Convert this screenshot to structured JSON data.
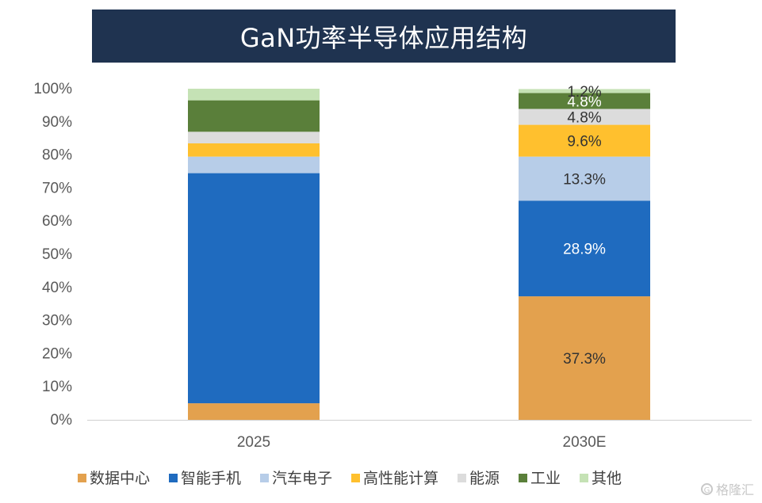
{
  "title": "GaN功率半导体应用结构",
  "watermark": "格隆汇",
  "chart_data": {
    "type": "bar",
    "stacked": true,
    "title": "GaN功率半导体应用结构",
    "categories": [
      "2025",
      "2030E"
    ],
    "ylim": [
      0,
      100
    ],
    "yticks": [
      "0%",
      "10%",
      "20%",
      "30%",
      "40%",
      "50%",
      "60%",
      "70%",
      "80%",
      "90%",
      "100%"
    ],
    "legend_position": "bottom",
    "series": [
      {
        "name": "数据中心",
        "color": "#e3a14e",
        "values": [
          5.0,
          37.3
        ],
        "labels": [
          "",
          "37.3%"
        ],
        "label_color": "#333333"
      },
      {
        "name": "智能手机",
        "color": "#1f6bbf",
        "values": [
          69.5,
          28.9
        ],
        "labels": [
          "",
          "28.9%"
        ],
        "label_color": "#ffffff"
      },
      {
        "name": "汽车电子",
        "color": "#b7cde8",
        "values": [
          5.0,
          13.3
        ],
        "labels": [
          "",
          "13.3%"
        ],
        "label_color": "#333333"
      },
      {
        "name": "高性能计算",
        "color": "#ffc02e",
        "values": [
          4.0,
          9.6
        ],
        "labels": [
          "",
          "9.6%"
        ],
        "label_color": "#333333"
      },
      {
        "name": "能源",
        "color": "#dcdcdc",
        "values": [
          3.5,
          4.8
        ],
        "labels": [
          "",
          "4.8%"
        ],
        "label_color": "#333333"
      },
      {
        "name": "工业",
        "color": "#5a7f3a",
        "values": [
          9.5,
          4.8
        ],
        "labels": [
          "",
          "4.8%"
        ],
        "label_color": "#ffffff"
      },
      {
        "name": "其他",
        "color": "#c5e2b5",
        "values": [
          3.5,
          1.2
        ],
        "labels": [
          "",
          "1.2%"
        ],
        "label_color": "#333333"
      }
    ]
  }
}
